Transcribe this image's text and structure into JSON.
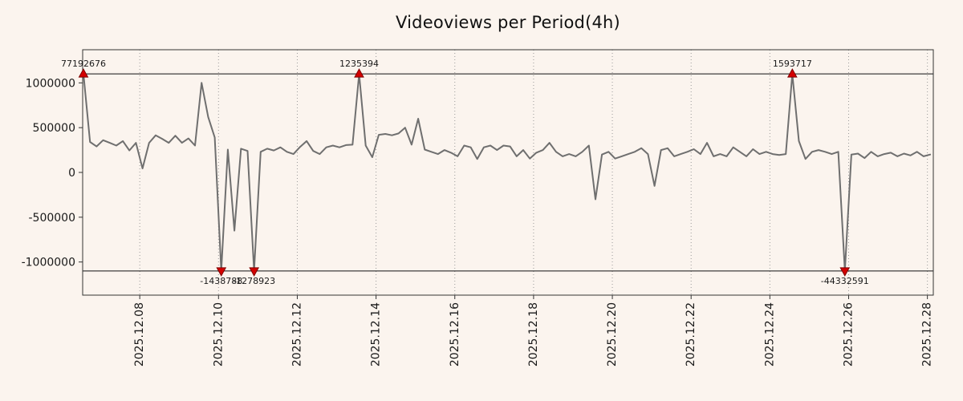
{
  "title": "Videoviews per Period(4h)",
  "colors": {
    "background": "#fbf4ee",
    "line": "#6f6f6f",
    "marker_fill": "#d40000",
    "marker_edge": "#7f0000",
    "grid": "#999999",
    "border": "#333333",
    "clip_line": "#111111",
    "text": "#1a1a1a"
  },
  "chart_data": {
    "type": "line",
    "title": "Videoviews per Period(4h)",
    "xlabel": "",
    "ylabel": "",
    "legend": "none",
    "grid": "vertical-dotted",
    "x_unit": "day of 2025.12, one point per 4h",
    "x_start": 6.57,
    "x_step": 0.16667,
    "xlim": [
      6.55,
      28.15
    ],
    "ylim": [
      -1370000,
      1370000
    ],
    "clip_value": 1100000,
    "y_ticks": [
      {
        "v": 1000000,
        "label": "1000000"
      },
      {
        "v": 500000,
        "label": "500000"
      },
      {
        "v": 0,
        "label": "0"
      },
      {
        "v": -500000,
        "label": "-500000"
      },
      {
        "v": -1000000,
        "label": "-1000000"
      }
    ],
    "x_ticks": [
      {
        "v": 8,
        "label": "2025.12.08"
      },
      {
        "v": 10,
        "label": "2025.12.10"
      },
      {
        "v": 12,
        "label": "2025.12.12"
      },
      {
        "v": 14,
        "label": "2025.12.14"
      },
      {
        "v": 16,
        "label": "2025.12.16"
      },
      {
        "v": 18,
        "label": "2025.12.18"
      },
      {
        "v": 20,
        "label": "2025.12.20"
      },
      {
        "v": 22,
        "label": "2025.12.22"
      },
      {
        "v": 24,
        "label": "2025.12.24"
      },
      {
        "v": 26,
        "label": "2025.12.26"
      },
      {
        "v": 28,
        "label": "2025.12.28"
      }
    ],
    "values": [
      77192676,
      340000,
      290000,
      360000,
      330000,
      300000,
      350000,
      245000,
      330000,
      45000,
      330000,
      415000,
      375000,
      330000,
      410000,
      330000,
      380000,
      300000,
      1000000,
      620000,
      390000,
      -1438788,
      255000,
      -650000,
      265000,
      240000,
      -1278923,
      230000,
      265000,
      245000,
      280000,
      230000,
      205000,
      285000,
      350000,
      240000,
      205000,
      280000,
      300000,
      280000,
      305000,
      310000,
      1235394,
      300000,
      170000,
      420000,
      430000,
      415000,
      435000,
      500000,
      310000,
      600000,
      255000,
      230000,
      205000,
      250000,
      220000,
      180000,
      300000,
      280000,
      150000,
      280000,
      300000,
      250000,
      300000,
      290000,
      180000,
      250000,
      155000,
      220000,
      250000,
      330000,
      230000,
      180000,
      205000,
      180000,
      230000,
      300000,
      -300000,
      200000,
      230000,
      155000,
      180000,
      205000,
      230000,
      270000,
      205000,
      -150000,
      250000,
      270000,
      180000,
      205000,
      230000,
      260000,
      205000,
      330000,
      180000,
      205000,
      180000,
      280000,
      230000,
      180000,
      260000,
      205000,
      230000,
      205000,
      195000,
      205000,
      1593717,
      350000,
      150000,
      230000,
      250000,
      230000,
      205000,
      230000,
      -44332591,
      200000,
      210000,
      160000,
      230000,
      180000,
      205000,
      220000,
      180000,
      210000,
      190000,
      230000,
      180000,
      200000
    ],
    "annotations": [
      {
        "index": 0,
        "label": "77192676",
        "dir": "up"
      },
      {
        "index": 21,
        "label": "-1438788",
        "dir": "down"
      },
      {
        "index": 26,
        "label": "-1278923",
        "dir": "down"
      },
      {
        "index": 42,
        "label": "1235394",
        "dir": "up"
      },
      {
        "index": 108,
        "label": "1593717",
        "dir": "up"
      },
      {
        "index": 116,
        "label": "-44332591",
        "dir": "down"
      }
    ]
  }
}
